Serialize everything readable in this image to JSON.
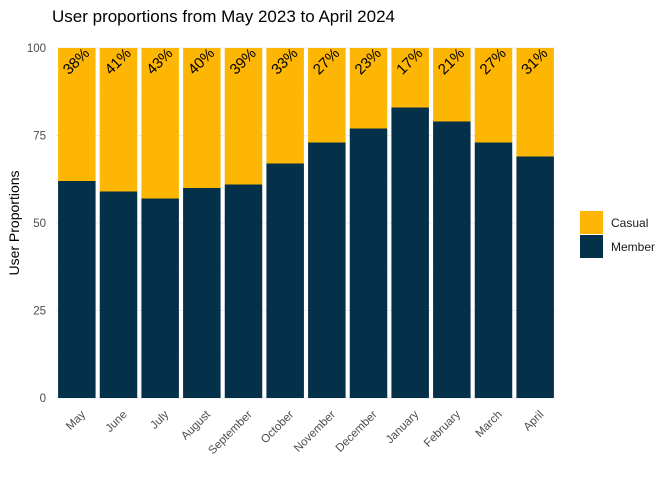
{
  "chart_data": {
    "type": "bar",
    "stacked": true,
    "title": "User proportions from May 2023 to April 2024",
    "xlabel": "",
    "ylabel": "User Proportions",
    "ylim": [
      0,
      100
    ],
    "yticks": [
      0,
      25,
      50,
      75,
      100
    ],
    "grid": true,
    "legend_position": "right",
    "categories": [
      "May",
      "June",
      "July",
      "August",
      "September",
      "October",
      "November",
      "December",
      "January",
      "February",
      "March",
      "April"
    ],
    "series": [
      {
        "name": "Member",
        "color": "#04304a",
        "values": [
          62,
          59,
          57,
          60,
          61,
          67,
          73,
          77,
          83,
          79,
          73,
          69
        ]
      },
      {
        "name": "Casual",
        "color": "#fdb604",
        "values": [
          38,
          41,
          43,
          40,
          39,
          33,
          27,
          23,
          17,
          21,
          27,
          31
        ]
      }
    ],
    "bar_labels": [
      "38%",
      "41%",
      "43%",
      "40%",
      "39%",
      "33%",
      "27%",
      "23%",
      "17%",
      "21%",
      "27%",
      "31%"
    ],
    "legend": [
      "Casual",
      "Member"
    ]
  }
}
